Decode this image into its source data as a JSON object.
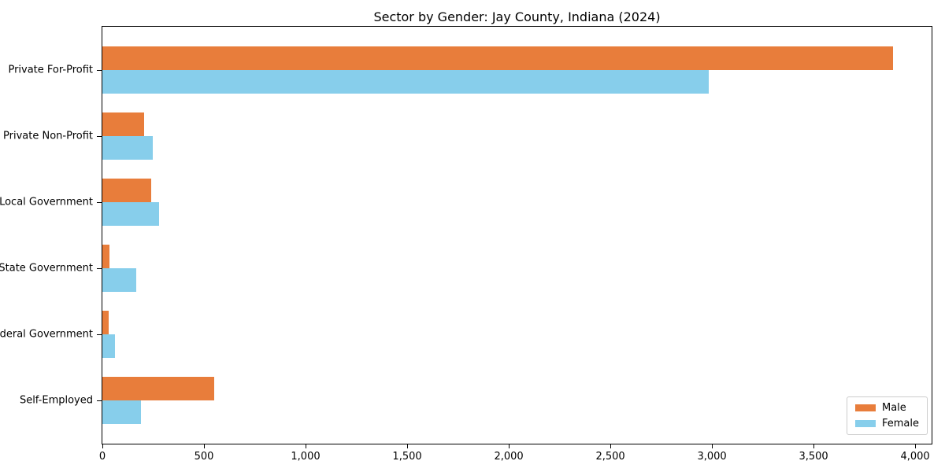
{
  "chart_data": {
    "type": "bar",
    "orientation": "horizontal",
    "title": "Sector by Gender: Jay County, Indiana (2024)",
    "categories": [
      "Private For-Profit",
      "Private Non-Profit",
      "Local Government",
      "State Government",
      "Federal Government",
      "Self-Employed"
    ],
    "series": [
      {
        "name": "Male",
        "color": "#e87d3b",
        "values": [
          3890,
          206,
          239,
          35,
          30,
          549
        ]
      },
      {
        "name": "Female",
        "color": "#87ceeb",
        "values": [
          2985,
          247,
          279,
          166,
          62,
          188
        ]
      }
    ],
    "xlabel": "",
    "ylabel": "",
    "xlim": [
      0,
      4081
    ],
    "xticks": [
      0,
      500,
      1000,
      1500,
      2000,
      2500,
      3000,
      3500,
      4000
    ],
    "xtick_labels": [
      "0",
      "500",
      "1,000",
      "1,500",
      "2,000",
      "2,500",
      "3,000",
      "3,500",
      "4,000"
    ],
    "legend_position": "lower right",
    "grid": false,
    "colors": {
      "male": "#e87d3b",
      "female": "#87ceeb",
      "spine": "#000000",
      "legend_border": "#cccccc"
    }
  }
}
